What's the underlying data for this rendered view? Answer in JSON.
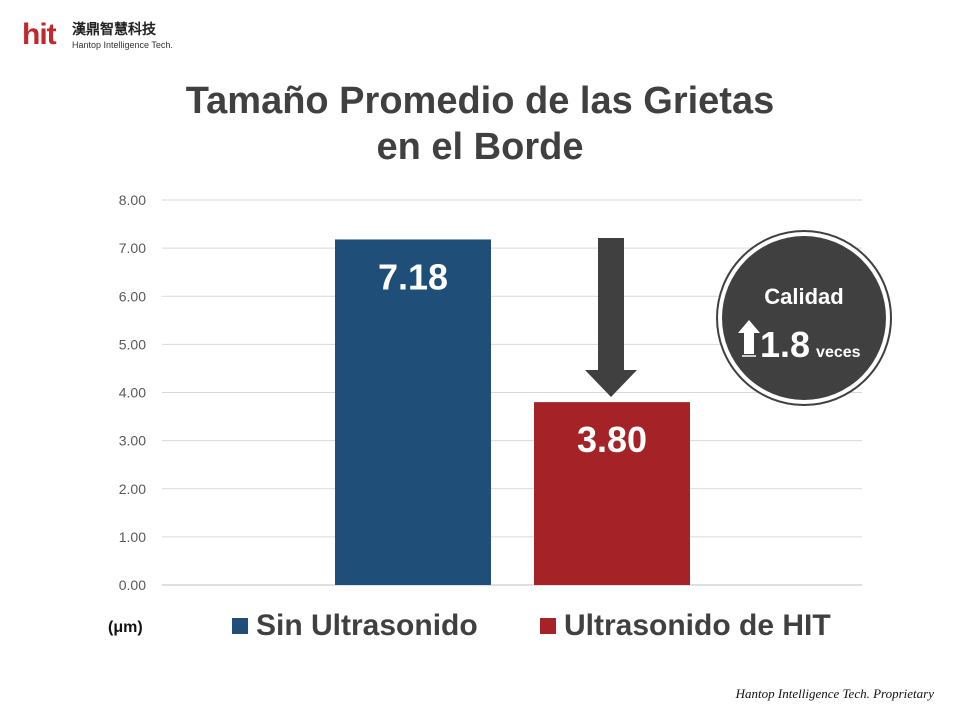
{
  "logo": {
    "mark": "hit",
    "chinese": "漢鼎智慧科技",
    "english": "Hantop Intelligence Tech."
  },
  "title": {
    "line1": "Tamaño Promedio de las Grietas",
    "line2": "en el Borde"
  },
  "chart_data": {
    "type": "bar",
    "title": "Tamaño Promedio de las Grietas en el Borde",
    "categories": [
      "Sin Ultrasonido",
      "Ultrasonido de HIT"
    ],
    "values": [
      7.18,
      3.8
    ],
    "value_labels": [
      "7.18",
      "3.80"
    ],
    "colors": [
      "#1f4e79",
      "#a52226"
    ],
    "ylabel": "",
    "unit_label": "(μm)",
    "ylim": [
      0,
      8
    ],
    "ytick_values": [
      0,
      1,
      2,
      3,
      4,
      5,
      6,
      7,
      8
    ],
    "ytick_labels": [
      "0.00",
      "1.00",
      "2.00",
      "3.00",
      "4.00",
      "5.00",
      "6.00",
      "7.00",
      "8.00"
    ],
    "grid": true,
    "legend": "bottom"
  },
  "annotation": {
    "title": "Calidad",
    "value": "1.8",
    "unit": "veces",
    "arrow_icon": "down-arrow-icon",
    "up_icon": "up-arrow-icon",
    "arrow_color": "#404040"
  },
  "footer": "Hantop Intelligence Tech. Proprietary"
}
